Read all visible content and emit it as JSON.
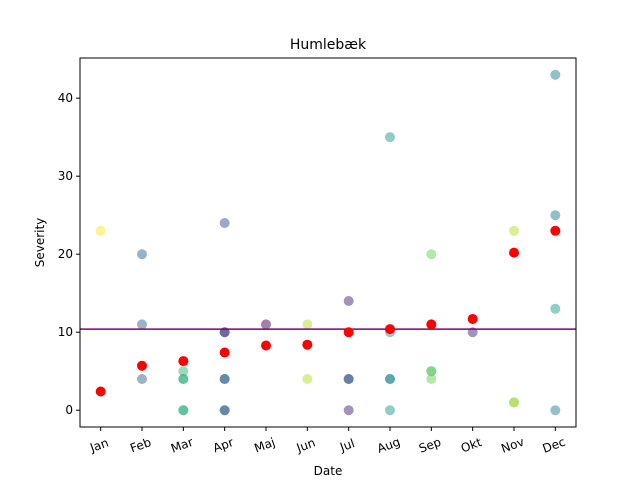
{
  "chart_data": {
    "type": "scatter",
    "title": "Humlebæk",
    "xlabel": "Date",
    "ylabel": "Severity",
    "ylim": [
      -2.15,
      45.15
    ],
    "yticks": [
      0,
      10,
      20,
      30,
      40
    ],
    "categories": [
      "Jan",
      "Feb",
      "Mar",
      "Apr",
      "Maj",
      "Jun",
      "Jul",
      "Aug",
      "Sep",
      "Okt",
      "Nov",
      "Dec"
    ],
    "grid": false,
    "legend": "none",
    "reference_line": {
      "y": 10.4,
      "color": "#800080"
    },
    "mean_marker_color": "#ff0000",
    "points": [
      {
        "x": "Jan",
        "y": 23,
        "color": "#fde725"
      },
      {
        "x": "Feb",
        "y": 20,
        "color": "#31688e"
      },
      {
        "x": "Feb",
        "y": 11,
        "color": "#31688e"
      },
      {
        "x": "Feb",
        "y": 4,
        "color": "#31688e"
      },
      {
        "x": "Mar",
        "y": 5,
        "color": "#35b779"
      },
      {
        "x": "Mar",
        "y": 4,
        "color": "#1f9e89"
      },
      {
        "x": "Mar",
        "y": 4,
        "color": "#35b779"
      },
      {
        "x": "Mar",
        "y": 0,
        "color": "#1f9e89"
      },
      {
        "x": "Mar",
        "y": 0,
        "color": "#35b779"
      },
      {
        "x": "Apr",
        "y": 24,
        "color": "#3b528b"
      },
      {
        "x": "Apr",
        "y": 10,
        "color": "#3b528b"
      },
      {
        "x": "Apr",
        "y": 10,
        "color": "#482878"
      },
      {
        "x": "Apr",
        "y": 4,
        "color": "#3b528b"
      },
      {
        "x": "Apr",
        "y": 4,
        "color": "#31688e"
      },
      {
        "x": "Apr",
        "y": 0,
        "color": "#3b528b"
      },
      {
        "x": "Apr",
        "y": 0,
        "color": "#31688e"
      },
      {
        "x": "Maj",
        "y": 11,
        "color": "#440154"
      },
      {
        "x": "Jun",
        "y": 11,
        "color": "#b5de2b"
      },
      {
        "x": "Jun",
        "y": 4,
        "color": "#b5de2b"
      },
      {
        "x": "Jul",
        "y": 14,
        "color": "#482878"
      },
      {
        "x": "Jul",
        "y": 4,
        "color": "#482878"
      },
      {
        "x": "Jul",
        "y": 4,
        "color": "#31688e"
      },
      {
        "x": "Jul",
        "y": 0,
        "color": "#482878"
      },
      {
        "x": "Aug",
        "y": 35,
        "color": "#1f9e89"
      },
      {
        "x": "Aug",
        "y": 10,
        "color": "#1f9e89"
      },
      {
        "x": "Aug",
        "y": 4,
        "color": "#1f9e89"
      },
      {
        "x": "Aug",
        "y": 4,
        "color": "#26828e"
      },
      {
        "x": "Aug",
        "y": 0,
        "color": "#1f9e89"
      },
      {
        "x": "Sep",
        "y": 20,
        "color": "#6ece58"
      },
      {
        "x": "Sep",
        "y": 5,
        "color": "#35b779"
      },
      {
        "x": "Sep",
        "y": 5,
        "color": "#6ece58"
      },
      {
        "x": "Sep",
        "y": 4,
        "color": "#6ece58"
      },
      {
        "x": "Okt",
        "y": 10,
        "color": "#482878"
      },
      {
        "x": "Nov",
        "y": 23,
        "color": "#b5de2b"
      },
      {
        "x": "Nov",
        "y": 1,
        "color": "#6ece58"
      },
      {
        "x": "Nov",
        "y": 1,
        "color": "#b5de2b"
      },
      {
        "x": "Dec",
        "y": 43,
        "color": "#26828e"
      },
      {
        "x": "Dec",
        "y": 25,
        "color": "#26828e"
      },
      {
        "x": "Dec",
        "y": 13,
        "color": "#1f9e89"
      },
      {
        "x": "Dec",
        "y": 0,
        "color": "#26828e"
      }
    ],
    "means": [
      {
        "x": "Jan",
        "y": 2.4
      },
      {
        "x": "Feb",
        "y": 5.7
      },
      {
        "x": "Mar",
        "y": 6.3
      },
      {
        "x": "Apr",
        "y": 7.4
      },
      {
        "x": "Maj",
        "y": 8.3
      },
      {
        "x": "Jun",
        "y": 8.4
      },
      {
        "x": "Jul",
        "y": 10.0
      },
      {
        "x": "Aug",
        "y": 10.4
      },
      {
        "x": "Sep",
        "y": 11.0
      },
      {
        "x": "Okt",
        "y": 11.7
      },
      {
        "x": "Nov",
        "y": 20.2
      },
      {
        "x": "Dec",
        "y": 23.0
      }
    ]
  }
}
